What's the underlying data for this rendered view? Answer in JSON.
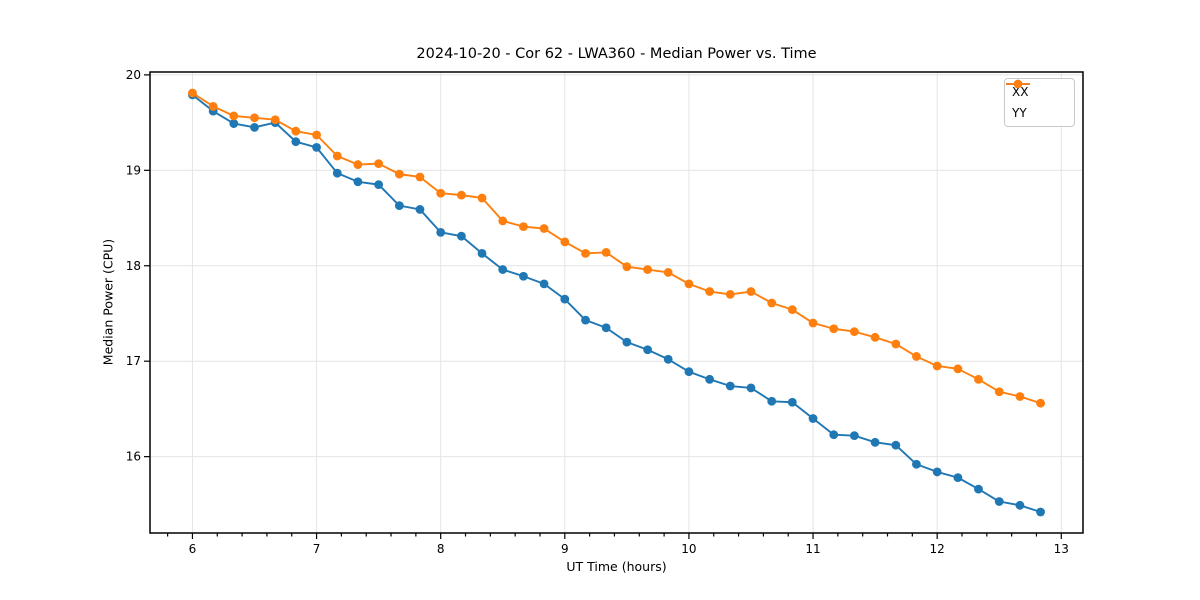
{
  "figure": {
    "title": "2024-10-20 - Cor 62 - LWA360 - Median Power vs. Time",
    "background_color": "#ffffff"
  },
  "chart_data": {
    "type": "line",
    "title": "2024-10-20 - Cor 62 - LWA360 - Median Power vs. Time",
    "xlabel": "UT Time (hours)",
    "ylabel": "Median Power (CPU)",
    "xlim": [
      5.658,
      13.175
    ],
    "ylim": [
      15.2,
      20.03
    ],
    "xticks": [
      6,
      7,
      8,
      9,
      10,
      11,
      12,
      13
    ],
    "yticks": [
      16,
      17,
      18,
      19,
      20
    ],
    "x_minor_tick_step": 0.2,
    "grid": true,
    "legend_position": "upper right",
    "x": [
      6,
      6.167,
      6.333,
      6.5,
      6.667,
      6.833,
      7,
      7.167,
      7.333,
      7.5,
      7.667,
      7.833,
      8,
      8.167,
      8.333,
      8.5,
      8.667,
      8.833,
      9,
      9.167,
      9.333,
      9.5,
      9.667,
      9.833,
      10,
      10.167,
      10.333,
      10.5,
      10.667,
      10.833,
      11,
      11.167,
      11.333,
      11.5,
      11.667,
      11.833,
      12,
      12.167,
      12.333,
      12.5,
      12.667,
      12.833
    ],
    "series": [
      {
        "name": "XX",
        "color": "#1f77b4",
        "marker": "circle",
        "values": [
          19.79,
          19.62,
          19.49,
          19.45,
          19.5,
          19.3,
          19.24,
          18.97,
          18.88,
          18.85,
          18.63,
          18.59,
          18.35,
          18.31,
          18.13,
          17.96,
          17.89,
          17.81,
          17.65,
          17.43,
          17.35,
          17.2,
          17.12,
          17.02,
          16.89,
          16.81,
          16.74,
          16.72,
          16.58,
          16.57,
          16.4,
          16.23,
          16.22,
          16.15,
          16.12,
          15.92,
          15.84,
          15.78,
          15.66,
          15.53,
          15.49,
          15.42
        ]
      },
      {
        "name": "YY",
        "color": "#ff7f0e",
        "marker": "circle",
        "values": [
          19.81,
          19.67,
          19.57,
          19.55,
          19.53,
          19.41,
          19.37,
          19.15,
          19.06,
          19.07,
          18.96,
          18.93,
          18.76,
          18.74,
          18.71,
          18.47,
          18.41,
          18.39,
          18.25,
          18.13,
          18.14,
          17.99,
          17.96,
          17.93,
          17.81,
          17.73,
          17.7,
          17.73,
          17.61,
          17.54,
          17.4,
          17.34,
          17.31,
          17.25,
          17.18,
          17.05,
          16.95,
          16.92,
          16.81,
          16.68,
          16.63,
          16.56
        ]
      }
    ]
  },
  "style_colors": {
    "grid": "#e4e4e4",
    "spine": "#000000",
    "tick": "#000000",
    "tick_label": "#000000",
    "legend_border": "#c9c9c9"
  }
}
